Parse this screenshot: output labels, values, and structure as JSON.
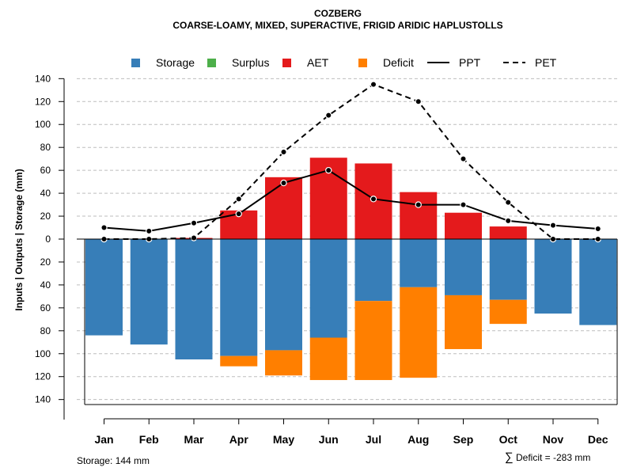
{
  "chart_data": {
    "type": "bar",
    "title": "COZBERG",
    "subtitle": "COARSE-LOAMY, MIXED, SUPERACTIVE, FRIGID ARIDIC HAPLUSTOLLS",
    "ylabel": "Inputs | Outputs | Storage    (mm)",
    "xlabel": "",
    "ylim": [
      -140,
      140
    ],
    "y_ticks": [
      140,
      120,
      100,
      80,
      60,
      40,
      20,
      0,
      -20,
      -40,
      -60,
      -80,
      -100,
      -120,
      -140
    ],
    "y_tick_labels": [
      "140",
      "120",
      "100",
      "80",
      "60",
      "40",
      "20",
      "0",
      "20",
      "40",
      "60",
      "80",
      "100",
      "120",
      "140"
    ],
    "grid": true,
    "legend_position": "top",
    "categories": [
      "Jan",
      "Feb",
      "Mar",
      "Apr",
      "May",
      "Jun",
      "Jul",
      "Aug",
      "Sep",
      "Oct",
      "Nov",
      "Dec"
    ],
    "series": [
      {
        "name": "Storage",
        "kind": "bar-below",
        "color": "#377EB8",
        "values": [
          84,
          92,
          105,
          102,
          97,
          86,
          54,
          42,
          49,
          53,
          65,
          75
        ]
      },
      {
        "name": "Surplus",
        "kind": "bar-above",
        "color": "#4DAF4A",
        "values": [
          0,
          0,
          0,
          0,
          0,
          0,
          0,
          0,
          0,
          0,
          0,
          0
        ]
      },
      {
        "name": "AET",
        "kind": "bar-above",
        "color": "#E41A1C",
        "values": [
          0,
          0,
          1,
          25,
          54,
          71,
          66,
          41,
          23,
          11,
          0,
          0
        ]
      },
      {
        "name": "Deficit",
        "kind": "bar-below-stacked",
        "color": "#FF7F00",
        "values": [
          0,
          0,
          0,
          9,
          22,
          37,
          69,
          79,
          47,
          21,
          0,
          0
        ]
      },
      {
        "name": "PPT",
        "kind": "line-solid",
        "color": "#000000",
        "values": [
          10,
          7,
          14,
          22,
          49,
          60,
          35,
          30,
          30,
          16,
          12,
          9
        ]
      },
      {
        "name": "PET",
        "kind": "line-dashed",
        "color": "#000000",
        "values": [
          0,
          0,
          1,
          35,
          76,
          108,
          135,
          120,
          70,
          32,
          0,
          0
        ]
      }
    ],
    "footer_left": "Storage: 144 mm",
    "footer_right_symbol": "∑",
    "footer_right": "Deficit = -283 mm"
  }
}
